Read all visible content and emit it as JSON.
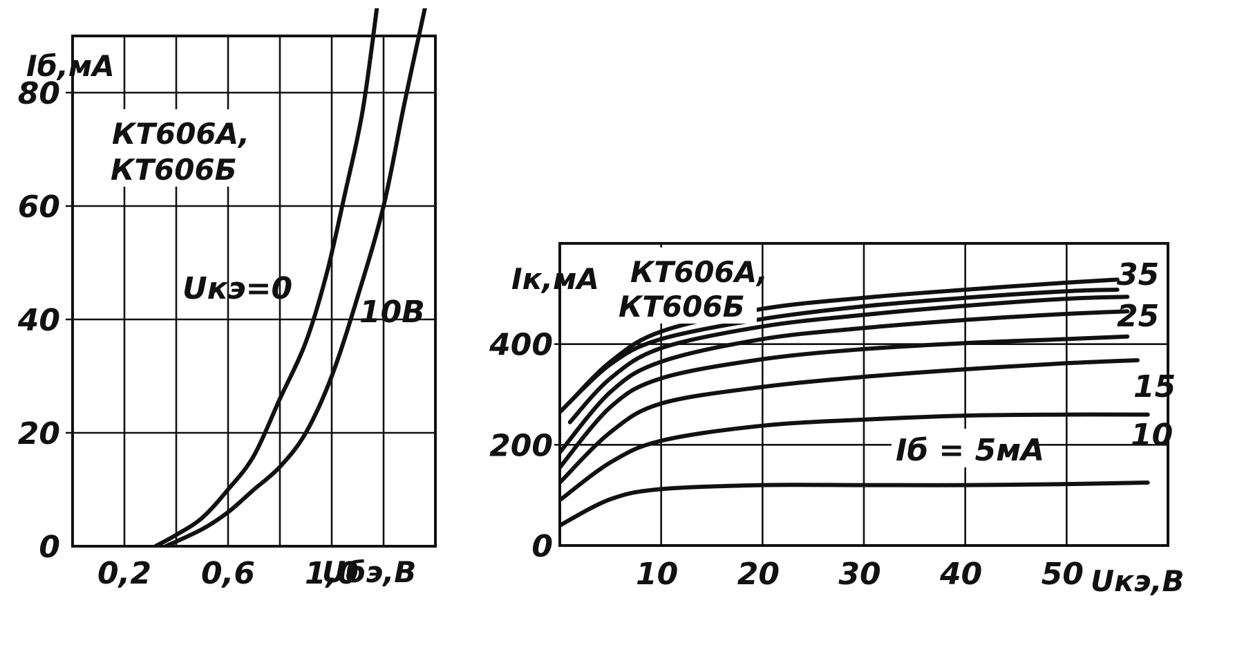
{
  "chart_data": [
    {
      "type": "line",
      "title": "КТ606А,\nКТ606Б",
      "title_lines": [
        "КТ606А,",
        "КТ606Б"
      ],
      "xlabel": "Uбэ,В",
      "ylabel": "Iб,мА",
      "xlim": [
        0.0,
        1.4
      ],
      "ylim": [
        0,
        90
      ],
      "x_ticks": [
        0.2,
        0.6,
        1.0
      ],
      "x_tick_labels": [
        "0,2",
        "0,6",
        "1,0"
      ],
      "y_ticks": [
        0,
        20,
        40,
        60,
        80
      ],
      "y_tick_labels": [
        "0",
        "20",
        "40",
        "60",
        "80"
      ],
      "grid": true,
      "series": [
        {
          "name": "Uкэ=0",
          "x": [
            0.32,
            0.4,
            0.5,
            0.6,
            0.7,
            0.8,
            0.9,
            0.98,
            1.05,
            1.12,
            1.18
          ],
          "y": [
            0,
            2,
            5,
            10,
            16,
            26,
            36,
            48,
            62,
            77,
            97
          ]
        },
        {
          "name": "10В",
          "x": [
            0.36,
            0.5,
            0.6,
            0.7,
            0.8,
            0.9,
            1.0,
            1.1,
            1.2,
            1.28,
            1.36
          ],
          "y": [
            0,
            3,
            6,
            10,
            14,
            20,
            30,
            44,
            60,
            78,
            95
          ]
        }
      ],
      "annotations": [
        "Uкэ=0",
        "10В"
      ]
    },
    {
      "type": "line",
      "title": "КТ606А,\nКТ606Б",
      "title_lines": [
        "КТ606А,",
        "КТ606Б"
      ],
      "xlabel": "Uкэ,В",
      "ylabel": "Iк,мА",
      "xlim": [
        0,
        60
      ],
      "ylim": [
        0,
        600
      ],
      "x_ticks": [
        10,
        20,
        30,
        40,
        50
      ],
      "x_tick_labels": [
        "10",
        "20",
        "30",
        "40",
        "50"
      ],
      "y_ticks": [
        0,
        200,
        400
      ],
      "y_tick_labels": [
        "0",
        "200",
        "400"
      ],
      "grid": true,
      "series": [
        {
          "name": "Iб = 5мА",
          "x": [
            0,
            5,
            10,
            20,
            30,
            40,
            50,
            58
          ],
          "y": [
            40,
            92,
            112,
            120,
            120,
            120,
            122,
            125
          ]
        },
        {
          "name": "10",
          "x": [
            0,
            5,
            10,
            20,
            30,
            40,
            50,
            58
          ],
          "y": [
            90,
            165,
            208,
            238,
            250,
            258,
            260,
            260
          ]
        },
        {
          "name": "",
          "x": [
            0,
            5,
            10,
            20,
            30,
            40,
            50,
            57
          ],
          "y": [
            125,
            225,
            282,
            315,
            335,
            350,
            362,
            368
          ]
        },
        {
          "name": "15",
          "x": [
            0,
            5,
            10,
            20,
            30,
            40,
            50,
            56
          ],
          "y": [
            155,
            275,
            332,
            370,
            390,
            402,
            410,
            415
          ]
        },
        {
          "name": "",
          "x": [
            0,
            5,
            10,
            20,
            30,
            40,
            50,
            56
          ],
          "y": [
            185,
            305,
            365,
            410,
            432,
            448,
            460,
            465
          ]
        },
        {
          "name": "25",
          "x": [
            1,
            5,
            10,
            20,
            30,
            40,
            50,
            56
          ],
          "y": [
            245,
            332,
            392,
            435,
            458,
            476,
            490,
            494
          ]
        },
        {
          "name": "",
          "x": [
            0,
            5,
            10,
            20,
            30,
            40,
            50,
            55
          ],
          "y": [
            265,
            360,
            410,
            450,
            475,
            492,
            505,
            508
          ]
        },
        {
          "name": "35",
          "x": [
            1,
            5,
            10,
            20,
            30,
            40,
            50,
            55
          ],
          "y": [
            285,
            365,
            425,
            470,
            492,
            508,
            522,
            528
          ]
        }
      ],
      "series_labels": [
        "35",
        "25",
        "15",
        "10",
        "Iб = 5мА"
      ]
    }
  ]
}
